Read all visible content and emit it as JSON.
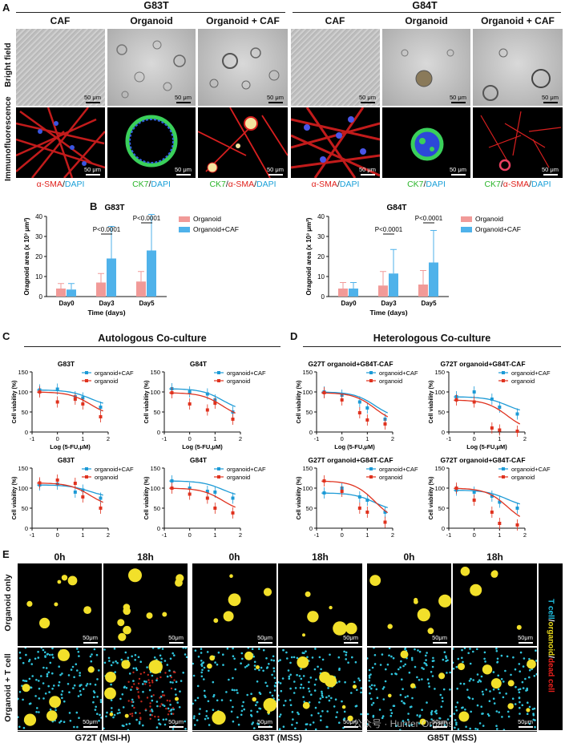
{
  "panel_labels": {
    "a": "A",
    "b": "B",
    "c": "C",
    "d": "D",
    "e": "E"
  },
  "panelA": {
    "groups": [
      "G83T",
      "G84T"
    ],
    "col_titles": [
      "CAF",
      "Organoid",
      "Organoid + CAF",
      "CAF",
      "Organoid",
      "Organoid + CAF"
    ],
    "row_labels": [
      "Bright field",
      "Immunofluorescence"
    ],
    "scale_bar": "50 μm",
    "stains": {
      "caf": [
        "α-SMA",
        "/",
        "DAPI"
      ],
      "org": [
        "CK7",
        "/",
        "DAPI"
      ],
      "both": [
        "CK7",
        "/",
        "α-SMA",
        "/",
        "DAPI"
      ]
    }
  },
  "panelB": {
    "chart_data": [
      {
        "type": "bar",
        "title": "G83T",
        "categories": [
          "Day0",
          "Day3",
          "Day5"
        ],
        "series": [
          {
            "name": "Organoid",
            "values": [
              4,
              7,
              7.5
            ],
            "err": [
              2.5,
              4.5,
              5
            ]
          },
          {
            "name": "Organoid+CAF",
            "values": [
              3.5,
              19,
              23
            ],
            "err": [
              3,
              16,
              18
            ]
          }
        ],
        "xlabel": "Time (days)",
        "ylabel": "Oragnoid area (x 10³ μm²)",
        "yticks": [
          "0",
          "10",
          "20",
          "30",
          "40"
        ],
        "ylim": [
          0,
          40
        ],
        "annotations": [
          "P<0.0001",
          "P<0.0001"
        ]
      },
      {
        "type": "bar",
        "title": "G84T",
        "categories": [
          "Day0",
          "Day3",
          "Day5"
        ],
        "series": [
          {
            "name": "Organoid",
            "values": [
              4,
              5.5,
              6
            ],
            "err": [
              3,
              7,
              7
            ]
          },
          {
            "name": "Organoid+CAF",
            "values": [
              4,
              11.5,
              17
            ],
            "err": [
              3,
              12,
              16
            ]
          }
        ],
        "xlabel": "Time (days)",
        "ylabel": "Oragnoid area (x 10³ μm²)",
        "yticks": [
          "0",
          "10",
          "20",
          "30",
          "40"
        ],
        "ylim": [
          0,
          40
        ],
        "annotations": [
          "P<0.0001",
          "P<0.0001"
        ]
      }
    ],
    "colors": {
      "organoid": "#f19a98",
      "caf": "#4fb2ea"
    }
  },
  "panelC": {
    "title": "Autologous Co-culture",
    "chart_data": [
      {
        "type": "line",
        "title": "G83T",
        "xlabel": "Log (5-FU,μM)",
        "ylabel": "Cell viability (%)",
        "series": [
          {
            "name": "organoid+CAF",
            "x": [
              -0.7,
              0,
              0.7,
              1,
              1.7
            ],
            "y": [
              105,
              107,
              88,
              85,
              62
            ]
          },
          {
            "name": "organoid",
            "x": [
              -0.7,
              0,
              0.7,
              1,
              1.7
            ],
            "y": [
              100,
              75,
              82,
              70,
              38
            ]
          }
        ]
      },
      {
        "type": "line",
        "title": "G84T",
        "xlabel": "Log (5-FU,μM)",
        "ylabel": "Cell viability (%)",
        "series": [
          {
            "name": "organoid+CAF",
            "x": [
              -0.7,
              0,
              0.7,
              1,
              1.7
            ],
            "y": [
              108,
              100,
              95,
              80,
              50
            ]
          },
          {
            "name": "organoid",
            "x": [
              -0.7,
              0,
              0.7,
              1,
              1.7
            ],
            "y": [
              98,
              70,
              55,
              72,
              32
            ]
          }
        ]
      },
      {
        "type": "line",
        "title": "G83T",
        "xlabel": "Log (Oxaliplatin,μM)",
        "ylabel": "Cell viability (%)",
        "series": [
          {
            "name": "organoid+CAF",
            "x": [
              -0.7,
              0,
              0.7,
              1,
              1.7
            ],
            "y": [
              108,
              110,
              90,
              95,
              75
            ]
          },
          {
            "name": "organoid",
            "x": [
              -0.7,
              0,
              0.7,
              1,
              1.7
            ],
            "y": [
              113,
              120,
              112,
              78,
              50
            ]
          }
        ]
      },
      {
        "type": "line",
        "title": "G84T",
        "xlabel": "Log (Oxaliplatin,μM)",
        "ylabel": "Cell viability (%)",
        "series": [
          {
            "name": "organoid+CAF",
            "x": [
              -0.7,
              0,
              0.7,
              1,
              1.7
            ],
            "y": [
              118,
              100,
              92,
              90,
              75
            ]
          },
          {
            "name": "organoid",
            "x": [
              -0.7,
              0,
              0.7,
              1,
              1.7
            ],
            "y": [
              100,
              85,
              75,
              50,
              38
            ]
          }
        ]
      }
    ]
  },
  "panelD": {
    "title": "Heterologous Co-culture",
    "chart_data": [
      {
        "type": "line",
        "title": "G27T organoid+G84T-CAF",
        "xlabel": "Log (5-FU,μM)",
        "ylabel": "Cell viability (%)",
        "series": [
          {
            "name": "organoid+CAF",
            "x": [
              -0.7,
              0,
              0.7,
              1,
              1.7
            ],
            "y": [
              100,
              92,
              75,
              60,
              32
            ]
          },
          {
            "name": "organoid",
            "x": [
              -0.7,
              0,
              0.7,
              1,
              1.7
            ],
            "y": [
              98,
              80,
              48,
              30,
              20
            ]
          }
        ]
      },
      {
        "type": "line",
        "title": "G72T organoid+G84T-CAF",
        "xlabel": "Log (5-FU,μM)",
        "ylabel": "Cell viability (%)",
        "series": [
          {
            "name": "organoid+CAF",
            "x": [
              -0.7,
              0,
              0.7,
              1,
              1.7
            ],
            "y": [
              88,
              100,
              82,
              62,
              45
            ]
          },
          {
            "name": "organoid",
            "x": [
              -0.7,
              0,
              0.7,
              1,
              1.7
            ],
            "y": [
              80,
              75,
              10,
              5,
              2
            ]
          }
        ]
      },
      {
        "type": "line",
        "title": "G27T organoid+G84T-CAF",
        "xlabel": "Log (Oxaliplatin,μM)",
        "ylabel": "Cell viability (%)",
        "series": [
          {
            "name": "organoid+CAF",
            "x": [
              -0.7,
              0,
              0.7,
              1,
              1.7
            ],
            "y": [
              88,
              100,
              78,
              70,
              40
            ]
          },
          {
            "name": "organoid",
            "x": [
              -0.7,
              0,
              0.7,
              1,
              1.7
            ],
            "y": [
              118,
              92,
              50,
              40,
              15
            ]
          }
        ]
      },
      {
        "type": "line",
        "title": "G72T organoid+G84T-CAF",
        "xlabel": "Log (Oxaliplatin,μM)",
        "ylabel": "Cell viability (%)",
        "series": [
          {
            "name": "organoid+CAF",
            "x": [
              -0.7,
              0,
              0.7,
              1,
              1.7
            ],
            "y": [
              95,
              90,
              80,
              65,
              50
            ]
          },
          {
            "name": "organoid",
            "x": [
              -0.7,
              0,
              0.7,
              1,
              1.7
            ],
            "y": [
              100,
              70,
              40,
              12,
              8
            ]
          }
        ]
      }
    ],
    "colors": {
      "caf": "#1c9ad6",
      "organoid": "#e0321e"
    },
    "yticks": [
      "0",
      "50",
      "100",
      "150"
    ],
    "xticks": [
      "-1",
      "0",
      "1",
      "2"
    ]
  },
  "panelE": {
    "time_labels": [
      "0h",
      "18h",
      "0h",
      "18h",
      "0h",
      "18h"
    ],
    "row_labels": [
      "Organoid only",
      "Organoid + T cell"
    ],
    "scale_bar": "50μm",
    "bottom_labels": [
      "G72T (MSI-H)",
      "G83T (MSS)",
      "G85T (MSS)"
    ],
    "side_legend": [
      "T cell",
      "/",
      "organoid",
      "/",
      "dead cell"
    ],
    "watermark": "公众号 · Hunter Organs"
  }
}
